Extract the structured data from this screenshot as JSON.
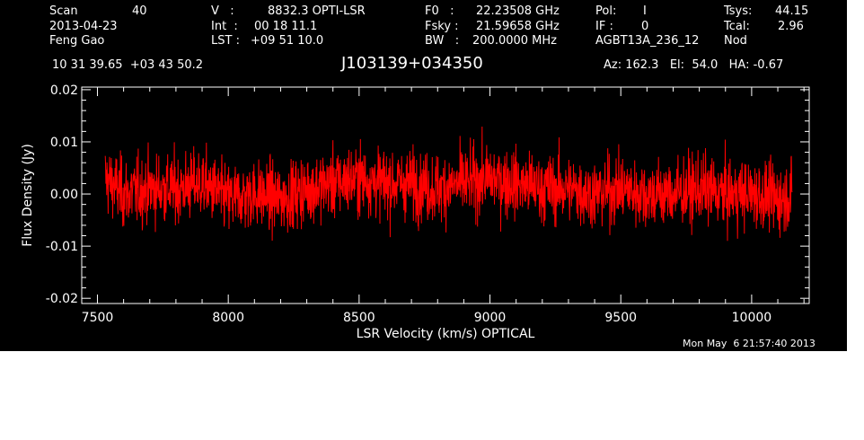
{
  "header": {
    "col1": {
      "scan_label": "Scan",
      "scan_value": "40",
      "date": "2013-04-23",
      "observer": "Feng Gao"
    },
    "col2": {
      "v_label": "V   :",
      "v_value": "8832.3 OPTI-LSR",
      "int_label": "Int  :",
      "int_value": "00 18 11.1",
      "lst_label": "LST :",
      "lst_value": "+09 51 10.0"
    },
    "col3": {
      "f0_label": "F0   :",
      "f0_value": "22.23508 GHz",
      "fsky_label": "Fsky :",
      "fsky_value": "21.59658 GHz",
      "bw_label": "BW   :",
      "bw_value": "200.0000 MHz"
    },
    "col4": {
      "pol_label": "Pol:",
      "pol_value": "I",
      "if_label": "IF :",
      "if_value": "0",
      "project": "AGBT13A_236_12"
    },
    "col5": {
      "tsys_label": "Tsys:",
      "tsys_value": "44.15",
      "tcal_label": "Tcal:",
      "tcal_value": "2.96",
      "mode": "Nod"
    },
    "coords": "10 31 39.65  +03 43 50.2",
    "source": "J103139+034350",
    "az_el_ha": "Az: 162.3   El:  54.0   HA: -0.67"
  },
  "footer": {
    "timestamp": "Mon May  6 21:57:40 2013"
  },
  "colors": {
    "background": "#000000",
    "axes": "#ffffff",
    "series": "#ff0000"
  },
  "chart_data": {
    "type": "line",
    "title": "J103139+034350",
    "xlabel": "LSR Velocity (km/s) OPTICAL",
    "ylabel": "Flux Density (Jy)",
    "xlim": [
      7440,
      10220
    ],
    "ylim": [
      -0.021,
      0.0205
    ],
    "xticks": [
      7500,
      8000,
      8500,
      9000,
      9500,
      10000
    ],
    "xtick_labels": [
      "7500",
      "8000",
      "8500",
      "9000",
      "9500",
      "10000"
    ],
    "yticks": [
      -0.02,
      -0.01,
      0.0,
      0.01,
      0.02
    ],
    "ytick_labels": [
      "-0.02",
      "-0.01",
      "0.00",
      "0.01",
      "0.02"
    ],
    "grid": false,
    "series": [
      {
        "x_start": 7530,
        "x_end": 10155,
        "noise_rms": 0.0045,
        "x": [
          7530,
          7600,
          7700,
          7800,
          7900,
          8000,
          8100,
          8200,
          8300,
          8400,
          8500,
          8600,
          8700,
          8800,
          8900,
          9000,
          9100,
          9200,
          9300,
          9400,
          9500,
          9600,
          9700,
          9800,
          9900,
          10000,
          10100,
          10155
        ],
        "y": [
          0.003,
          0.0,
          0.001,
          0.001,
          0.002,
          -0.001,
          0.0,
          -0.001,
          0.001,
          0.002,
          0.003,
          0.002,
          0.002,
          0.001,
          0.002,
          0.003,
          0.002,
          0.001,
          0.001,
          0.0,
          0.001,
          0.0,
          0.0,
          0.001,
          0.0,
          0.0,
          -0.001,
          0.0
        ]
      }
    ]
  }
}
